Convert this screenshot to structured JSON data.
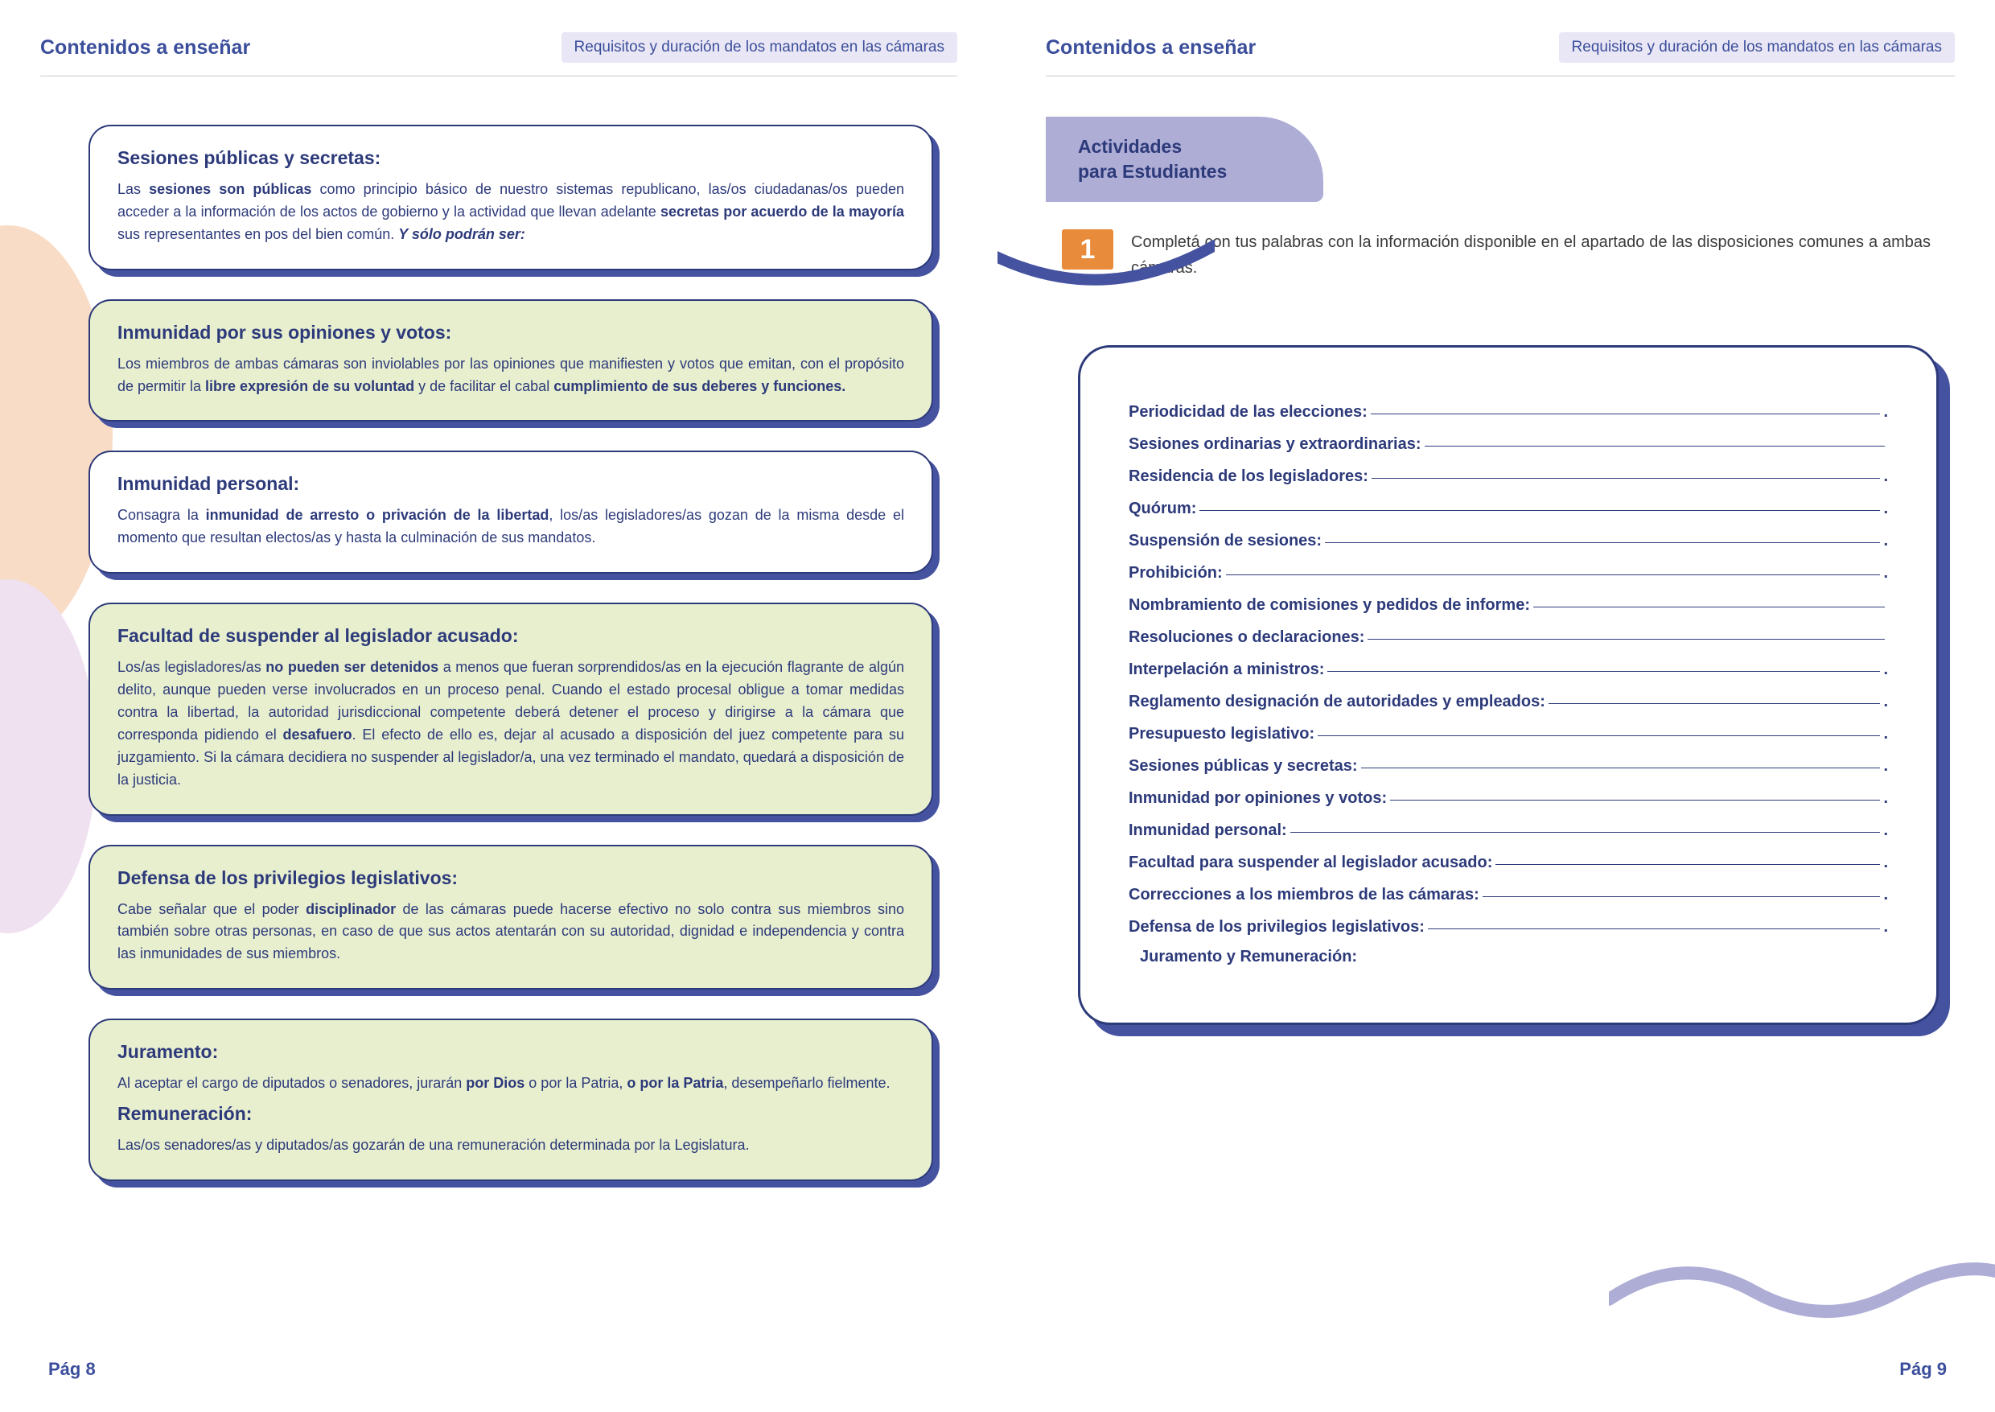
{
  "colors": {
    "primary": "#2d3a7a",
    "header": "#3b4e9b",
    "headerTagBg": "#e9e7f5",
    "cardShadow": "#4552a0",
    "greenCard": "#e8efcf",
    "lilac": "#aeadd6",
    "orange": "#e88b3a",
    "blobPeach": "#f9dcc6",
    "blobLilac": "#efe1f0"
  },
  "header": {
    "title": "Contenidos a enseñar",
    "tag": "Requisitos y  duración de los mandatos en las cámaras"
  },
  "footer": {
    "left": "Pág 8",
    "right": "Pág 9"
  },
  "cards": [
    {
      "bg": "white",
      "title": "Sesiones públicas y secretas:",
      "html": "Las <strong>sesiones son públicas</strong> como principio básico de nuestro sistemas republicano, las/os ciudadanas/os pueden acceder a la información de los actos de gobierno y la actividad que llevan adelante <strong>secretas por acuerdo de la mayoría</strong> sus representantes en pos del bien común. <strong><em>Y sólo podrán ser:</em></strong>"
    },
    {
      "bg": "green",
      "title": "Inmunidad por sus opiniones y votos:",
      "html": "Los miembros de ambas cámaras son inviolables por las opiniones que manifiesten y votos que emitan, con el propósito de permitir la <strong>libre expresión de su voluntad</strong> y de facilitar el cabal <strong>cumplimiento de sus deberes y funciones.</strong>"
    },
    {
      "bg": "white",
      "title": "Inmunidad personal:",
      "html": "Consagra la <strong>inmunidad de arresto o privación de la libertad</strong>, los/as legisladores/as gozan de la misma desde el momento que resultan electos/as y hasta la culminación de sus mandatos."
    },
    {
      "bg": "green",
      "title": "Facultad de suspender al legislador acusado:",
      "html": "Los/as legisladores/as <strong>no pueden ser detenidos</strong> a menos que fueran sorprendidos/as en la ejecución flagrante de algún delito, aunque pueden verse involucrados en un proceso penal. Cuando el estado procesal obligue a tomar medidas contra la libertad, la autoridad jurisdiccional competente deberá detener el proceso y dirigirse a la cámara que corresponda pidiendo el <strong>desafuero</strong>. El efecto de ello es, dejar al acusado a disposición del juez competente para su juzgamiento. Si la cámara decidiera no suspender al legislador/a, una vez terminado el mandato, quedará a disposición de la justicia."
    },
    {
      "bg": "green",
      "title": "Defensa de los privilegios legislativos:",
      "html": "Cabe señalar que el poder <strong>disciplinador</strong> de las cámaras puede hacerse efectivo no solo contra sus miembros sino también sobre otras personas, en caso de que sus actos atentarán con su autoridad, dignidad e independencia y contra las inmunidades de sus miembros."
    },
    {
      "bg": "green",
      "title": "Juramento:",
      "html": "Al aceptar el cargo de diputados o senadores, jurarán <strong>por Dios</strong> o por la Patria, <strong>o por la Patria</strong>, desempeñarlo fielmente.",
      "title2": "Remuneración:",
      "html2": "Las/os senadores/as y diputados/as gozarán de una remuneración determinada por la Legislatura."
    }
  ],
  "activities": {
    "headerLine1": "Actividades",
    "headerLine2": "para  Estudiantes",
    "taskNumber": "1",
    "taskText": "Completá con tus palabras con la información disponible en el apartado de las disposiciones comunes a ambas cámaras."
  },
  "fillItems": [
    {
      "label": "Periodicidad de las elecciones:",
      "end": "."
    },
    {
      "label": "Sesiones ordinarias y extraordinarias:",
      "end": ""
    },
    {
      "label": "Residencia de los legisladores:",
      "end": "."
    },
    {
      "label": "Quórum:",
      "end": "."
    },
    {
      "label": "Suspensión de sesiones:",
      "end": "."
    },
    {
      "label": "Prohibición:",
      "end": "."
    },
    {
      "label": "Nombramiento de comisiones y pedidos de informe:",
      "end": ""
    },
    {
      "label": "Resoluciones o declaraciones:",
      "end": ""
    },
    {
      "label": "Interpelación a ministros:",
      "end": "."
    },
    {
      "label": "Reglamento designación de autoridades y empleados:",
      "end": "."
    },
    {
      "label": "Presupuesto legislativo:",
      "end": "."
    },
    {
      "label": "Sesiones públicas y secretas:",
      "end": "."
    },
    {
      "label": "Inmunidad por opiniones y votos:",
      "end": "."
    },
    {
      "label": "Inmunidad personal:",
      "end": "."
    },
    {
      "label": "Facultad para suspender al legislador acusado:",
      "end": "."
    },
    {
      "label": "Correcciones a los miembros de las cámaras:",
      "end": "."
    },
    {
      "label": "Defensa de los privilegios legislativos:",
      "end": "."
    }
  ],
  "fillLast": "Juramento y Remuneración:"
}
